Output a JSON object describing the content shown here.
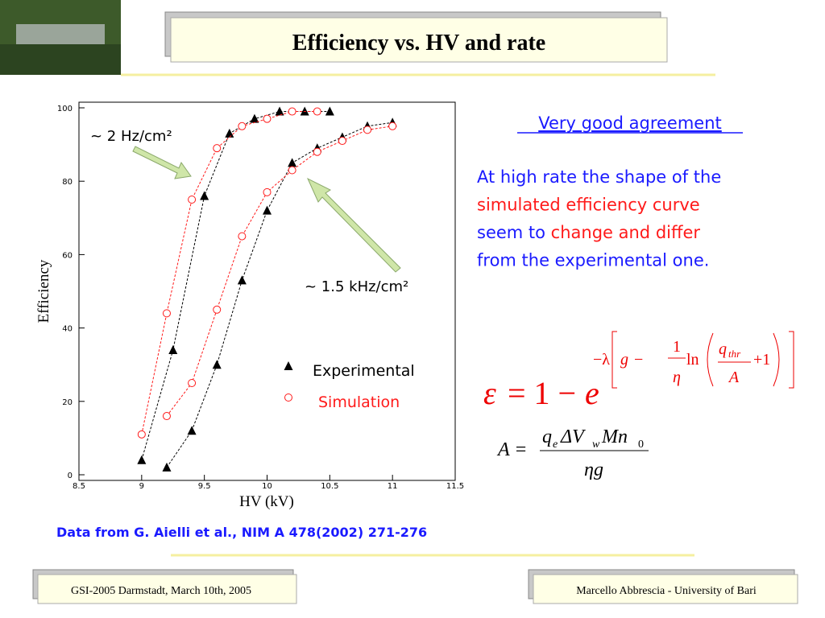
{
  "title": "Efficiency vs. HV and rate",
  "heading": "Very good agreement",
  "body_lines": [
    [
      {
        "text": "At high rate the shape of the",
        "color": "#1a1aff"
      }
    ],
    [
      {
        "text": "simulated efficiency curve",
        "color": "#ff1a1a"
      }
    ],
    [
      {
        "text": "seem to ",
        "color": "#1a1aff"
      },
      {
        "text": "change and differ",
        "color": "#ff1a1a"
      }
    ],
    [
      {
        "text": "from the experimental one.",
        "color": "#1a1aff"
      }
    ]
  ],
  "citation": "Data from G. Aielli et al., NIM A 478(2002) 271-276",
  "footer_left": "GSI-2005 Darmstadt, March 10th, 2005",
  "footer_right": "Marcello Abbrescia - University of Bari",
  "formula_eff": {
    "epsilon": "ε",
    "eq": "= 1 −",
    "e": "e",
    "exp_lambda": "−λ",
    "g": "g",
    "minus": "−",
    "one": "1",
    "eta": "η",
    "ln": "ln",
    "q": "q",
    "thr": "thr",
    "A": "A",
    "plus_one": "+1"
  },
  "formula_A": {
    "A_eq": "A =",
    "q": "q",
    "e": "e",
    "dV": "ΔV",
    "w": "w",
    "Mn": "Mn",
    "zero": "0",
    "den": "ηg"
  },
  "chart_data": {
    "type": "scatter",
    "xlabel": "HV (kV)",
    "ylabel": "Efficiency",
    "xlim": [
      8.5,
      11.5
    ],
    "xticks": [
      8.5,
      9,
      9.5,
      10,
      10.5,
      11,
      11.5
    ],
    "ylim": [
      0,
      100
    ],
    "yticks": [
      0,
      20,
      40,
      60,
      80,
      100
    ],
    "annotations": [
      "~ 2 Hz/cm²",
      "~ 1.5 kHz/cm²"
    ],
    "legend": [
      {
        "name": "Experimental",
        "marker": "triangle",
        "color": "#000000"
      },
      {
        "name": "Simulation",
        "marker": "circle",
        "color": "#ff1a1a"
      }
    ],
    "series": [
      {
        "marker": "triangle",
        "color": "#000000",
        "x": [
          9.0,
          9.25,
          9.5,
          9.7,
          9.9,
          10.1,
          10.3,
          10.5
        ],
        "values": [
          4,
          34,
          76,
          93,
          97,
          99,
          99,
          99
        ]
      },
      {
        "marker": "circle",
        "color": "#ff1a1a",
        "x": [
          9.0,
          9.2,
          9.4,
          9.6,
          9.8,
          10.0,
          10.2,
          10.4
        ],
        "values": [
          11,
          44,
          75,
          89,
          95,
          97,
          99,
          99
        ]
      },
      {
        "marker": "triangle",
        "color": "#000000",
        "x": [
          9.2,
          9.4,
          9.6,
          9.8,
          10.0,
          10.2,
          10.4,
          10.6,
          10.8,
          11.0
        ],
        "values": [
          2,
          12,
          30,
          53,
          72,
          85,
          89,
          92,
          95,
          96
        ]
      },
      {
        "marker": "circle",
        "color": "#ff1a1a",
        "x": [
          9.2,
          9.4,
          9.6,
          9.8,
          10.0,
          10.2,
          10.4,
          10.6,
          10.8,
          11.0
        ],
        "values": [
          16,
          25,
          45,
          65,
          77,
          83,
          88,
          91,
          94,
          95
        ]
      }
    ]
  }
}
